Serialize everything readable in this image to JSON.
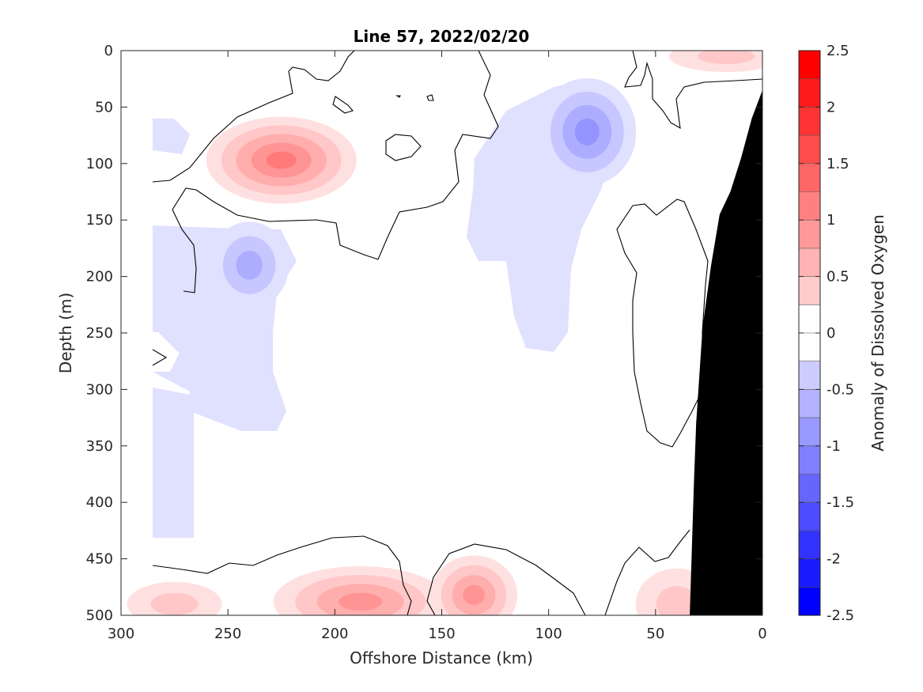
{
  "chart_data": {
    "type": "heatmap",
    "title": "Line 57, 2022/02/20",
    "xlabel": "Offshore Distance (km)",
    "ylabel": "Depth (m)",
    "colorbar_label": "Anomaly of Dissolved Oxygen",
    "xlim": [
      300,
      0
    ],
    "ylim": [
      0,
      500
    ],
    "clim": [
      -2.5,
      2.5
    ],
    "x_ticks": [
      300,
      250,
      200,
      150,
      100,
      50,
      0
    ],
    "y_ticks": [
      0,
      50,
      100,
      150,
      200,
      250,
      300,
      350,
      400,
      450,
      500
    ],
    "colorbar_ticks": [
      "2.5",
      "2",
      "1.5",
      "1",
      "0.5",
      "0",
      "-0.5",
      "-1",
      "-1.5",
      "-2",
      "-2.5"
    ],
    "colorbar_levels": [
      2.5,
      2.25,
      2.0,
      1.75,
      1.5,
      1.25,
      1.0,
      0.75,
      0.5,
      0.25,
      0.0,
      -0.25,
      -0.5,
      -0.75,
      -1.0,
      -1.25,
      -1.5,
      -1.75,
      -2.0,
      -2.25,
      -2.5
    ],
    "colors": {
      "positive": "#ff0000",
      "negative": "#0000ff",
      "neutral": "#ffffff",
      "bathymetry": "#000000"
    },
    "data_extent_x": [
      285,
      0
    ],
    "anomaly_features": [
      {
        "name": "surface-coastal-high",
        "x": 17,
        "depth": 5,
        "value": 0.5
      },
      {
        "name": "subsurface-high-west",
        "x": 225,
        "depth": 97,
        "value": 1.2
      },
      {
        "name": "oxygen-low-upper",
        "x": 82,
        "depth": 72,
        "value": -1.1
      },
      {
        "name": "oxygen-low-west",
        "x": 240,
        "depth": 190,
        "value": -0.8
      },
      {
        "name": "deep-high-west",
        "x": 188,
        "depth": 488,
        "value": 1.1
      },
      {
        "name": "deep-high-center",
        "x": 135,
        "depth": 482,
        "value": 1.1
      },
      {
        "name": "deep-high-coastal",
        "x": 40,
        "depth": 490,
        "value": 0.6
      },
      {
        "name": "deep-edge-high-west",
        "x": 275,
        "depth": 490,
        "value": 0.5
      }
    ],
    "bathymetry_profile": [
      [
        0,
        35
      ],
      [
        5,
        60
      ],
      [
        10,
        95
      ],
      [
        15,
        125
      ],
      [
        20,
        145
      ],
      [
        24,
        190
      ],
      [
        28,
        245
      ],
      [
        31,
        330
      ],
      [
        32,
        380
      ],
      [
        33,
        440
      ],
      [
        34,
        500
      ]
    ],
    "grid": false
  }
}
